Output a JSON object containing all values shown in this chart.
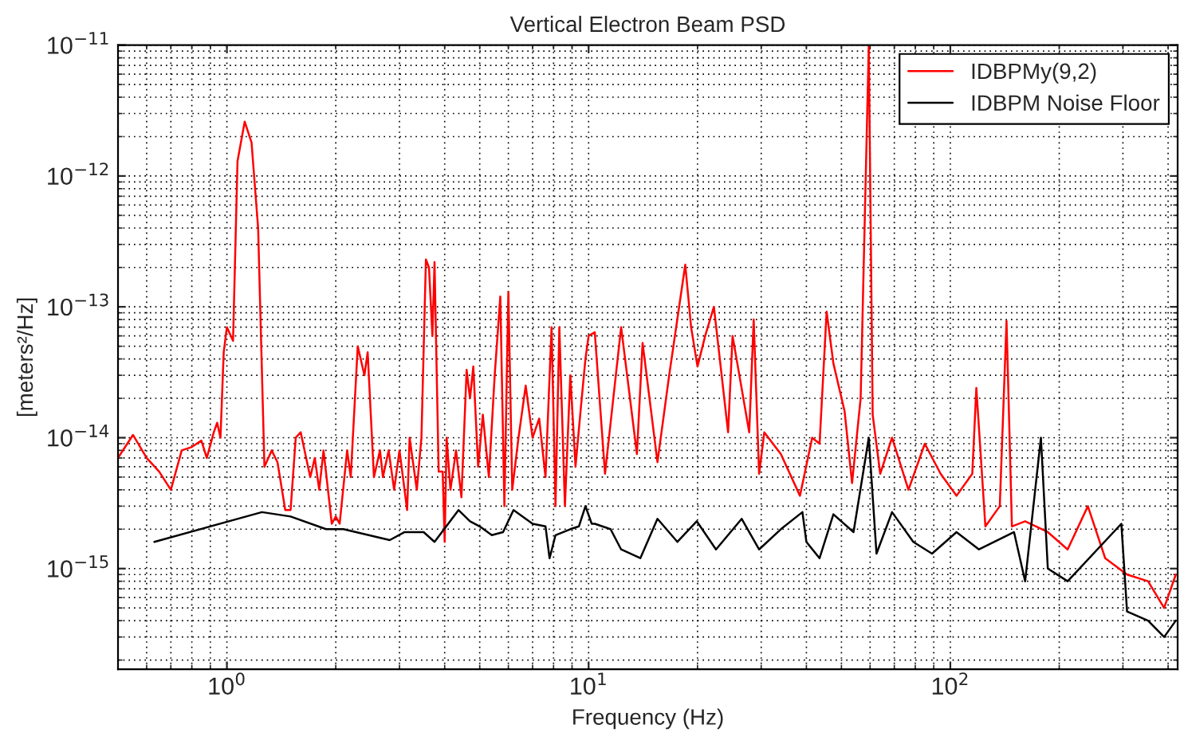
{
  "chart_data": {
    "type": "line",
    "title": "Vertical Electron Beam PSD",
    "xlabel": "Frequency (Hz)",
    "ylabel": "[meters²/Hz]",
    "log": "xy",
    "grid": true,
    "legend": "top right",
    "marker": "none",
    "line_style": "solid",
    "xlim": [
      0.5,
      425
    ],
    "ylim": [
      1.7e-16,
      1e-11
    ],
    "xticks": [
      {
        "value": 1,
        "label": "10$^{0}$"
      },
      {
        "value": 10,
        "label": "10$^{1}$"
      },
      {
        "value": 100,
        "label": "10$^{2}$"
      }
    ],
    "yticks": [
      {
        "value": 1e-15,
        "label": "10$^{−15}$"
      },
      {
        "value": 1e-14,
        "label": "10$^{−14}$"
      },
      {
        "value": 1e-13,
        "label": "10$^{−13}$"
      },
      {
        "value": 1e-12,
        "label": "10$^{−12}$"
      },
      {
        "value": 1e-11,
        "label": "10$^{−11}$"
      }
    ],
    "series": [
      {
        "name": "IDBPMy(9,2)",
        "color": "#ff0000",
        "x": [
          0.5,
          0.55,
          0.6,
          0.65,
          0.7,
          0.75,
          0.8,
          0.85,
          0.88,
          0.92,
          0.94,
          0.96,
          0.98,
          1.0,
          1.04,
          1.07,
          1.12,
          1.17,
          1.22,
          1.27,
          1.33,
          1.38,
          1.45,
          1.5,
          1.55,
          1.6,
          1.7,
          1.75,
          1.8,
          1.85,
          1.95,
          2.0,
          2.05,
          2.15,
          2.2,
          2.3,
          2.4,
          2.45,
          2.55,
          2.65,
          2.7,
          2.8,
          2.9,
          3.0,
          3.15,
          3.2,
          3.35,
          3.45,
          3.55,
          3.62,
          3.7,
          3.75,
          3.85,
          3.95,
          4.0,
          4.05,
          4.15,
          4.3,
          4.45,
          4.6,
          4.7,
          4.8,
          4.95,
          5.1,
          5.3,
          5.5,
          5.7,
          5.85,
          6.0,
          6.15,
          6.4,
          6.7,
          7.0,
          7.3,
          7.6,
          7.9,
          8.1,
          8.3,
          8.6,
          8.9,
          9.2,
          9.5,
          9.8,
          10.0,
          10.4,
          11.1,
          12.3,
          13.6,
          14.1,
          15.5,
          16.7,
          18.5,
          19.2,
          20,
          21,
          22.2,
          24.3,
          25,
          27.8,
          28.6,
          29.6,
          30.6,
          34,
          38.4,
          41.5,
          43.5,
          45.5,
          47.5,
          51,
          53.5,
          56.5,
          59.5,
          61,
          64,
          69,
          76.6,
          85,
          94,
          104,
          115,
          118,
          125,
          137,
          143,
          148,
          161,
          186,
          211,
          240,
          268,
          308,
          352,
          390,
          420
        ],
        "values": [
          7e-15,
          1.05e-14,
          7e-15,
          5.5e-15,
          4e-15,
          8e-15,
          8.5e-15,
          9.5e-15,
          7e-15,
          1.1e-14,
          1.3e-14,
          1e-14,
          4.5e-14,
          7e-14,
          5.5e-14,
          1.3e-12,
          2.6e-12,
          1.8e-12,
          4e-13,
          6e-15,
          8e-15,
          6.5e-15,
          2.8e-15,
          2.8e-15,
          1e-14,
          1.1e-14,
          5e-15,
          7e-15,
          4e-15,
          8e-15,
          2.2e-15,
          2.5e-15,
          2.2e-15,
          8e-15,
          5e-15,
          5e-14,
          3e-14,
          4.5e-14,
          5e-15,
          8e-15,
          5e-15,
          8e-15,
          4e-15,
          8e-15,
          2.8e-15,
          1e-14,
          4e-15,
          1e-14,
          2.3e-13,
          2e-13,
          6e-14,
          2.2e-13,
          5.5e-15,
          5.5e-15,
          1.6e-15,
          1e-14,
          4e-15,
          8e-15,
          3.5e-15,
          3.3e-14,
          2e-14,
          3.5e-14,
          6e-15,
          1.5e-14,
          5e-15,
          3e-14,
          1.2e-13,
          3e-15,
          1.3e-13,
          4e-15,
          1e-14,
          2.5e-14,
          1e-14,
          1.4e-14,
          5e-15,
          7e-14,
          3e-15,
          7e-14,
          3e-15,
          3e-14,
          6e-15,
          1.6e-14,
          4e-14,
          6e-14,
          6.4e-14,
          5.3e-15,
          7e-14,
          7.5e-15,
          5.3e-14,
          6.5e-15,
          3e-14,
          2.1e-13,
          7e-14,
          3.5e-14,
          6e-14,
          1e-13,
          1.1e-14,
          6e-14,
          1.1e-14,
          8e-14,
          5.3e-15,
          1.1e-14,
          7.5e-15,
          3.6e-15,
          1e-14,
          9e-15,
          9.2e-14,
          3.7e-14,
          1.6e-14,
          4.5e-15,
          2e-14,
          1e-11,
          1.5e-14,
          5.3e-15,
          1e-14,
          4e-15,
          9e-15,
          5.3e-15,
          3.6e-15,
          5.3e-15,
          2.4e-14,
          2.1e-15,
          3e-15,
          7.8e-14,
          2.1e-15,
          2.3e-15,
          1.9e-15,
          1.4e-15,
          3e-15,
          1.2e-15,
          9e-16,
          8e-16,
          5e-16,
          9e-16
        ]
      },
      {
        "name": "IDBPM Noise Floor",
        "color": "#000000",
        "x": [
          0.63,
          1.25,
          1.5,
          1.88,
          2.1,
          2.82,
          3.1,
          3.5,
          3.75,
          4.37,
          4.7,
          5.0,
          5.4,
          5.8,
          6.2,
          7.0,
          7.6,
          7.8,
          8.1,
          8.9,
          9.4,
          9.8,
          10.2,
          10.4,
          11.5,
          12.3,
          13.9,
          15.5,
          17.6,
          19.9,
          22.5,
          26.5,
          29.6,
          34,
          39,
          40,
          43.5,
          47.5,
          54,
          59.5,
          62.5,
          69,
          79,
          89,
          104,
          120,
          150,
          161,
          178,
          186,
          211,
          297,
          308,
          352,
          390,
          420
        ],
        "values": [
          1.6e-15,
          2.7e-15,
          2.5e-15,
          2e-15,
          2e-15,
          1.65e-15,
          1.9e-15,
          1.9e-15,
          1.6e-15,
          2.8e-15,
          2.3e-15,
          2.1e-15,
          1.8e-15,
          1.9e-15,
          2.8e-15,
          2.2e-15,
          2.1e-15,
          1.2e-15,
          1.8e-15,
          2e-15,
          2.1e-15,
          3e-15,
          2.2e-15,
          2.2e-15,
          2e-15,
          1.4e-15,
          1.2e-15,
          2.4e-15,
          1.6e-15,
          2.3e-15,
          1.4e-15,
          2.4e-15,
          1.4e-15,
          2e-15,
          2.7e-15,
          1.6e-15,
          1.2e-15,
          2.6e-15,
          1.9e-15,
          1e-14,
          1.3e-15,
          2.7e-15,
          1.6e-15,
          1.3e-15,
          1.9e-15,
          1.4e-15,
          1.9e-15,
          8e-16,
          1e-14,
          1e-15,
          8e-16,
          2.2e-15,
          4.7e-16,
          4e-16,
          3e-16,
          4e-16
        ]
      }
    ]
  }
}
